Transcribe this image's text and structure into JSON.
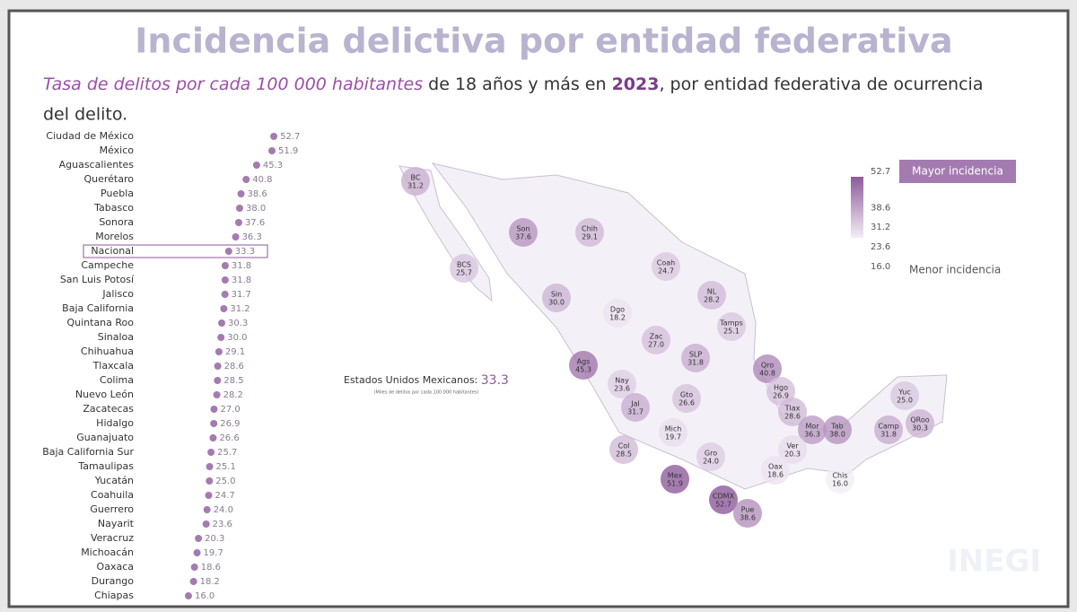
{
  "chart_data": {
    "type": "dot",
    "title": "Incidencia delictiva por entidad federativa",
    "subtitle": [
      "Tasa de delitos por cada 100 000 habitantes",
      " de 18 años y más en ",
      "2023",
      ", por entidad federativa de ocurrencia",
      "del delito."
    ],
    "color": "#a47bb0",
    "highlight": "Nacional",
    "xlim": [
      0,
      60
    ],
    "categories": [
      "Ciudad de México",
      "México",
      "Aguascalientes",
      "Querétaro",
      "Puebla",
      "Tabasco",
      "Sonora",
      "Morelos",
      "Nacional",
      "Campeche",
      "San Luis Potosí",
      "Jalisco",
      "Baja California",
      "Quintana Roo",
      "Sinaloa",
      "Chihuahua",
      "Tlaxcala",
      "Colima",
      "Nuevo León",
      "Zacatecas",
      "Hidalgo",
      "Guanajuato",
      "Baja California Sur",
      "Tamaulipas",
      "Yucatán",
      "Coahuila",
      "Guerrero",
      "Nayarit",
      "Veracruz",
      "Michoacán",
      "Oaxaca",
      "Durango",
      "Chiapas"
    ],
    "values": [
      52.7,
      51.9,
      45.3,
      40.8,
      38.6,
      38.0,
      37.6,
      36.3,
      33.3,
      31.8,
      31.8,
      31.7,
      31.2,
      30.3,
      30.0,
      29.1,
      28.6,
      28.5,
      28.2,
      27.0,
      26.9,
      26.6,
      25.7,
      25.1,
      25.0,
      24.7,
      24.0,
      23.6,
      20.3,
      19.7,
      18.6,
      18.2,
      16.0
    ],
    "value_labels": [
      "52.7",
      "51.9",
      "45.3",
      "40.8",
      "38.6",
      "38.0",
      "37.6",
      "36.3",
      "33.3",
      "31.8",
      "31.8",
      "31.7",
      "31.2",
      "30.3",
      "30.0",
      "29.1",
      "28.6",
      "28.5",
      "28.2",
      "27.0",
      "26.9",
      "26.6",
      "25.7",
      "25.1",
      "25.0",
      "24.7",
      "24.0",
      "23.6",
      "20.3",
      "19.7",
      "18.6",
      "18.2",
      "16.0"
    ]
  },
  "map": {
    "annotation": "Estados Unidos Mexicanos: ",
    "annotation_value": {
      "value": 33.3,
      "label": "33.3"
    },
    "annotation_note": "(Miles de delitos por cada 100 000 habitantes)",
    "legend_high": "Mayor incidencia",
    "legend_low": "Menor incidencia",
    "colors": [
      "#f3edf6",
      "#8e5a9b"
    ],
    "scale_ticks": [
      {
        "value": 52.7,
        "label": "52.7"
      },
      {
        "value": 38.6,
        "label": "38.6"
      },
      {
        "value": 31.2,
        "label": "31.2"
      },
      {
        "value": 23.6,
        "label": "23.6"
      },
      {
        "value": 16.0,
        "label": "16.0"
      }
    ],
    "regions": [
      {
        "abbr": "BC",
        "value": 31.2,
        "label": "31.2"
      },
      {
        "abbr": "BCS",
        "value": 25.7,
        "label": "25.7"
      },
      {
        "abbr": "Son",
        "value": 37.6,
        "label": "37.6"
      },
      {
        "abbr": "Chih",
        "value": 29.1,
        "label": "29.1"
      },
      {
        "abbr": "Coah",
        "value": 24.7,
        "label": "24.7"
      },
      {
        "abbr": "NL",
        "value": 28.2,
        "label": "28.2"
      },
      {
        "abbr": "Tamps",
        "value": 25.1,
        "label": "25.1"
      },
      {
        "abbr": "Sin",
        "value": 30.0,
        "label": "30.0"
      },
      {
        "abbr": "Dgo",
        "value": 18.2,
        "label": "18.2"
      },
      {
        "abbr": "Zac",
        "value": 27.0,
        "label": "27.0"
      },
      {
        "abbr": "SLP",
        "value": 31.8,
        "label": "31.8"
      },
      {
        "abbr": "Ags",
        "value": 45.3,
        "label": "45.3"
      },
      {
        "abbr": "Nay",
        "value": 23.6,
        "label": "23.6"
      },
      {
        "abbr": "Jal",
        "value": 31.7,
        "label": "31.7"
      },
      {
        "abbr": "Gto",
        "value": 26.6,
        "label": "26.6"
      },
      {
        "abbr": "Qro",
        "value": 40.8,
        "label": "40.8"
      },
      {
        "abbr": "Hgo",
        "value": 26.9,
        "label": "26.9"
      },
      {
        "abbr": "Tlax",
        "value": 28.6,
        "label": "28.6"
      },
      {
        "abbr": "Mor",
        "value": 36.3,
        "label": "36.3"
      },
      {
        "abbr": "Tab",
        "value": 38.0,
        "label": "38.0"
      },
      {
        "abbr": "Camp",
        "value": 31.8,
        "label": "31.8"
      },
      {
        "abbr": "Yuc",
        "value": 25.0,
        "label": "25.0"
      },
      {
        "abbr": "QRoo",
        "value": 30.3,
        "label": "30.3"
      },
      {
        "abbr": "Mich",
        "value": 19.7,
        "label": "19.7"
      },
      {
        "abbr": "Col",
        "value": 28.5,
        "label": "28.5"
      },
      {
        "abbr": "Gro",
        "value": 24.0,
        "label": "24.0"
      },
      {
        "abbr": "Ver",
        "value": 20.3,
        "label": "20.3"
      },
      {
        "abbr": "Oax",
        "value": 18.6,
        "label": "18.6"
      },
      {
        "abbr": "Chis",
        "value": 16.0,
        "label": "16.0"
      },
      {
        "abbr": "Mex",
        "value": 51.9,
        "label": "51.9"
      },
      {
        "abbr": "CDMX",
        "value": 52.7,
        "label": "52.7"
      },
      {
        "abbr": "Pue",
        "value": 38.6,
        "label": "38.6"
      }
    ],
    "logo": "INEGI"
  }
}
